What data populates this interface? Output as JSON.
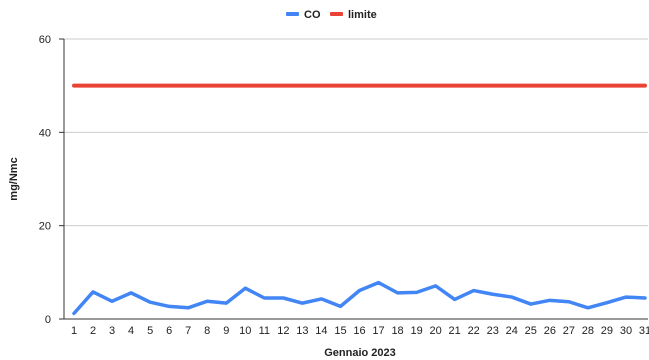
{
  "chart_data": {
    "type": "line",
    "xlabel": "Gennaio 2023",
    "ylabel": "mg/Nmc",
    "ylim": [
      0,
      60
    ],
    "yticks": [
      0,
      20,
      40,
      60
    ],
    "x": [
      1,
      2,
      3,
      4,
      5,
      6,
      7,
      8,
      9,
      10,
      11,
      12,
      13,
      14,
      15,
      16,
      17,
      18,
      19,
      20,
      21,
      22,
      23,
      24,
      25,
      26,
      27,
      28,
      29,
      30,
      31
    ],
    "legend_position": "top",
    "grid": true,
    "series": [
      {
        "name": "CO",
        "color": "#4285f4",
        "values": [
          1.2,
          5.8,
          3.8,
          5.6,
          3.6,
          2.7,
          2.4,
          3.8,
          3.4,
          6.6,
          4.5,
          4.5,
          3.4,
          4.3,
          2.7,
          6.1,
          7.8,
          5.6,
          5.7,
          7.1,
          4.2,
          6.1,
          5.3,
          4.7,
          3.2,
          4.0,
          3.7,
          2.4,
          3.5,
          4.7,
          4.5
        ]
      },
      {
        "name": "limite",
        "color": "#ea4335",
        "values": [
          50,
          50,
          50,
          50,
          50,
          50,
          50,
          50,
          50,
          50,
          50,
          50,
          50,
          50,
          50,
          50,
          50,
          50,
          50,
          50,
          50,
          50,
          50,
          50,
          50,
          50,
          50,
          50,
          50,
          50,
          50
        ]
      }
    ]
  }
}
